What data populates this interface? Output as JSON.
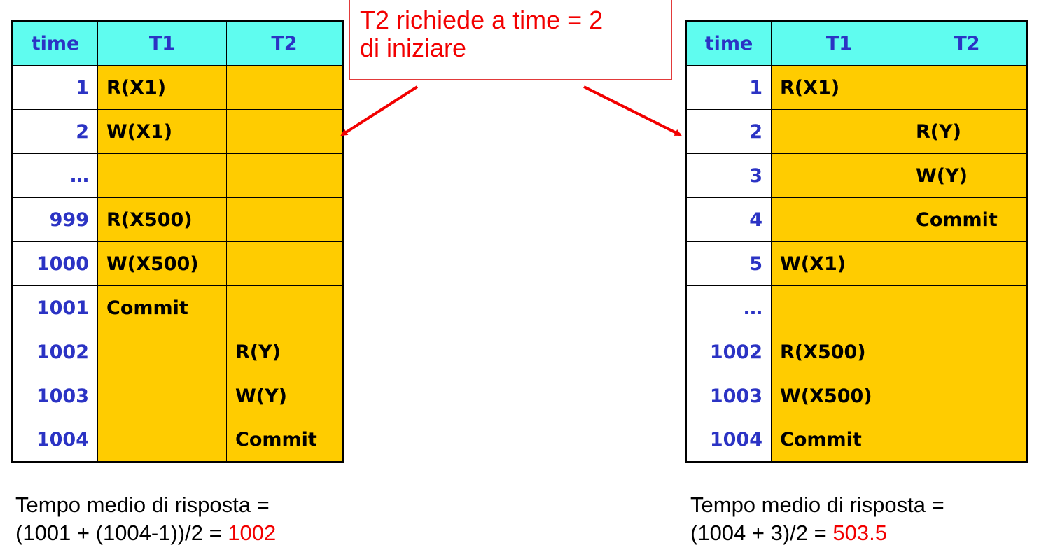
{
  "callout": {
    "line1": "T2 richiede a time = 2",
    "line2": "di iniziare",
    "color": "#f20000"
  },
  "tables": {
    "left": {
      "headers": [
        "time",
        "T1",
        "T2"
      ],
      "rows": [
        [
          "1",
          "R(X1)",
          ""
        ],
        [
          "2",
          "W(X1)",
          ""
        ],
        [
          "…",
          "",
          ""
        ],
        [
          "999",
          "R(X500)",
          ""
        ],
        [
          "1000",
          "W(X500)",
          ""
        ],
        [
          "1001",
          "Commit",
          ""
        ],
        [
          "1002",
          "",
          "R(Y)"
        ],
        [
          "1003",
          "",
          "W(Y)"
        ],
        [
          "1004",
          "",
          "Commit"
        ]
      ]
    },
    "right": {
      "headers": [
        "time",
        "T1",
        "T2"
      ],
      "rows": [
        [
          "1",
          "R(X1)",
          ""
        ],
        [
          "2",
          "",
          "R(Y)"
        ],
        [
          "3",
          "",
          "W(Y)"
        ],
        [
          "4",
          "",
          "Commit"
        ],
        [
          "5",
          "W(X1)",
          ""
        ],
        [
          "…",
          "",
          ""
        ],
        [
          "1002",
          "R(X500)",
          ""
        ],
        [
          "1003",
          "W(X500)",
          ""
        ],
        [
          "1004",
          "Commit",
          ""
        ]
      ]
    }
  },
  "formulas": {
    "left": {
      "line1": "Tempo medio di risposta =",
      "line2_prefix": "(1001 + (1004-1))/2 = ",
      "result": "1002"
    },
    "right": {
      "line1": "Tempo medio di risposta =",
      "line2_prefix": "(1004 + 3)/2 = ",
      "result": "503.5"
    }
  },
  "colors": {
    "header_bg": "#5ffcef",
    "cell_bg": "#ffcc00",
    "time_text": "#2b33c4",
    "highlight": "#f20000"
  }
}
